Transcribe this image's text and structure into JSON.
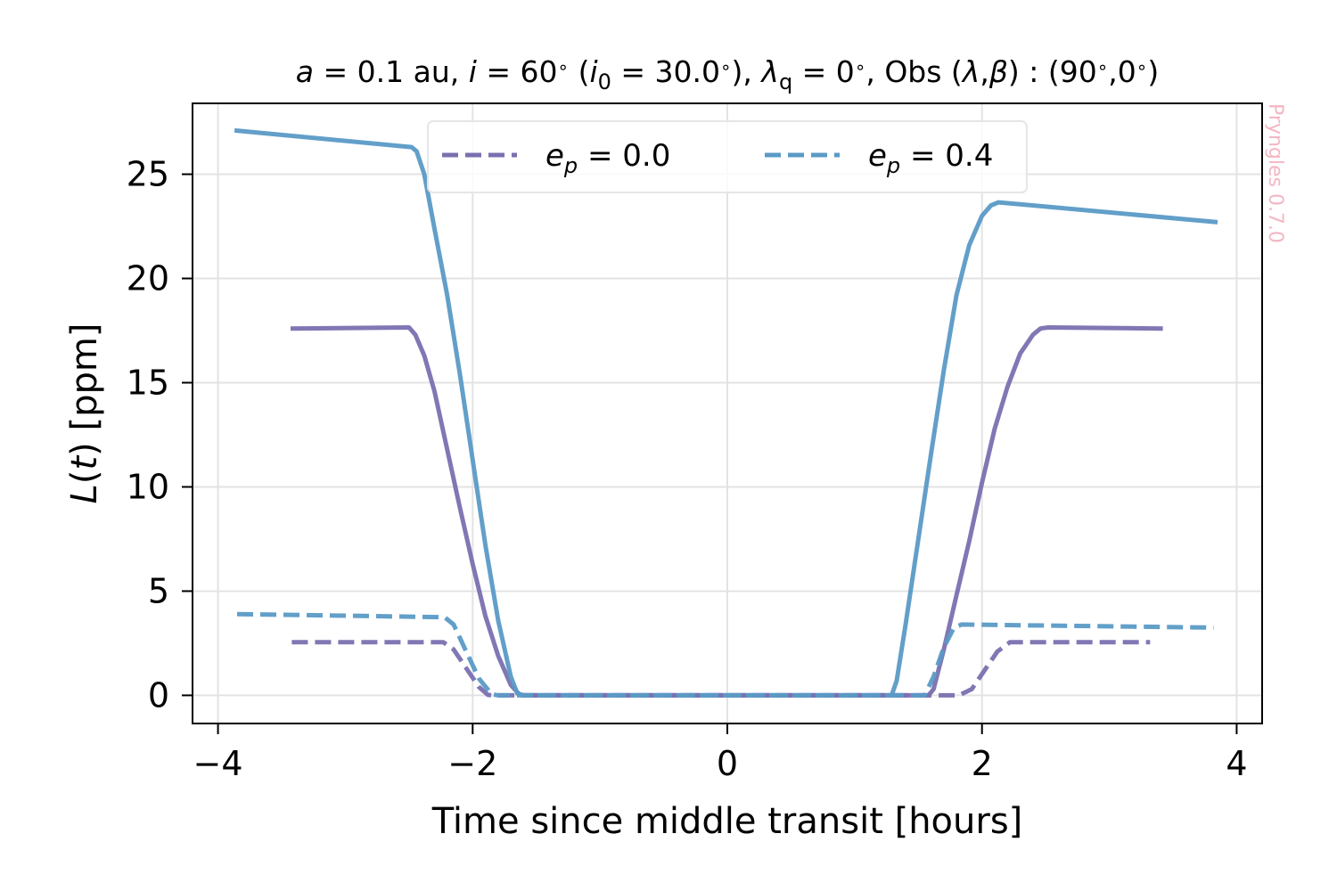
{
  "chart_data": {
    "type": "line",
    "title": "a = 0.1 au, i = 60° (i₀ = 30.0°), λq = 0°, Obs (λ,β) : (90°,0°)",
    "xlabel": "Time since middle transit [hours]",
    "ylabel": "L(t) [ppm]",
    "xlim": [
      -4.2,
      4.2
    ],
    "ylim": [
      -1.35,
      28.4
    ],
    "xticks": [
      -4,
      -2,
      0,
      2,
      4
    ],
    "xtick_labels": [
      "−4",
      "−2",
      "0",
      "2",
      "4"
    ],
    "yticks": [
      0,
      5,
      10,
      15,
      20,
      25
    ],
    "ytick_labels": [
      "0",
      "5",
      "10",
      "15",
      "20",
      "25"
    ],
    "grid": true,
    "legend": {
      "position": "top-center",
      "entries": [
        {
          "label": "e_p = 0.0",
          "color": "#7a70b0",
          "style": "dashed"
        },
        {
          "label": "e_p = 0.4",
          "color": "#5a9ac6",
          "style": "dashed"
        }
      ]
    },
    "watermark": "Pryngles 0.7.0",
    "series": [
      {
        "color": "#7a70b0",
        "style": "solid",
        "x": [
          -3.43,
          -2.5,
          -2.45,
          -2.38,
          -2.3,
          -2.2,
          -2.1,
          -2.0,
          -1.9,
          -1.8,
          -1.7,
          -1.63,
          -1.6,
          1.58,
          1.62,
          1.7,
          1.8,
          1.9,
          2.0,
          2.1,
          2.2,
          2.3,
          2.4,
          2.46,
          2.52,
          3.42
        ],
        "y": [
          17.6,
          17.65,
          17.3,
          16.3,
          14.6,
          11.8,
          9.0,
          6.3,
          3.8,
          1.9,
          0.5,
          0.02,
          0,
          0,
          0.3,
          2.2,
          4.8,
          7.4,
          10.2,
          12.8,
          14.8,
          16.4,
          17.3,
          17.6,
          17.65,
          17.6
        ]
      },
      {
        "color": "#5a9ac6",
        "style": "solid",
        "x": [
          -3.87,
          -2.48,
          -2.44,
          -2.38,
          -2.3,
          -2.2,
          -2.1,
          -2.0,
          -1.9,
          -1.8,
          -1.7,
          -1.65,
          -1.6,
          1.29,
          1.33,
          1.4,
          1.5,
          1.6,
          1.7,
          1.8,
          1.9,
          2.0,
          2.07,
          2.13,
          3.85
        ],
        "y": [
          27.1,
          26.3,
          26.1,
          25.0,
          22.4,
          19.2,
          15.4,
          11.3,
          7.2,
          3.6,
          0.9,
          0.1,
          0,
          0,
          0.7,
          3.4,
          7.5,
          11.6,
          15.6,
          19.2,
          21.6,
          23.0,
          23.5,
          23.65,
          22.7
        ]
      },
      {
        "color": "#7a70b0",
        "style": "dashed",
        "x": [
          -3.42,
          -2.23,
          -2.15,
          -2.05,
          -1.95,
          -1.88,
          -1.85,
          1.7,
          1.82,
          1.92,
          2.02,
          2.12,
          2.22,
          3.32
        ],
        "y": [
          2.55,
          2.55,
          2.2,
          1.3,
          0.4,
          0.02,
          0,
          0,
          0,
          0.3,
          1.2,
          2.1,
          2.55,
          2.55
        ]
      },
      {
        "color": "#5a9ac6",
        "style": "dashed",
        "x": [
          -3.85,
          -2.22,
          -2.15,
          -2.05,
          -1.95,
          -1.85,
          -1.8,
          1.55,
          1.62,
          1.7,
          1.78,
          1.84,
          3.82
        ],
        "y": [
          3.9,
          3.75,
          3.4,
          2.1,
          0.8,
          0.05,
          0,
          0,
          0.9,
          2.3,
          3.25,
          3.4,
          3.25
        ]
      }
    ]
  }
}
